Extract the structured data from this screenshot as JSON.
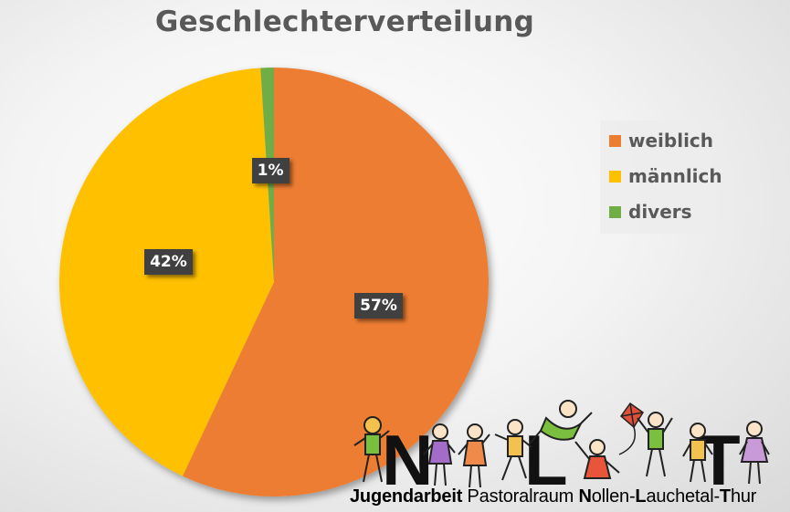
{
  "chart_data": {
    "type": "pie",
    "title": "Geschlechterverteilung",
    "categories": [
      "weiblich",
      "männlich",
      "divers"
    ],
    "values": [
      57,
      42,
      1
    ],
    "unit": "%",
    "data_labels": [
      "57%",
      "42%",
      "1%"
    ],
    "colors": [
      "#ED7D31",
      "#FFC000",
      "#70AD47"
    ],
    "legend_position": "right"
  },
  "logo": {
    "letters": [
      "N",
      "L",
      "T"
    ],
    "text_parts": [
      {
        "text": "Jugendarbeit",
        "bold": true
      },
      {
        "text": " Pastoralraum ",
        "bold": false
      },
      {
        "text": "N",
        "bold": true
      },
      {
        "text": "ollen-",
        "bold": false
      },
      {
        "text": "L",
        "bold": true
      },
      {
        "text": "auchetal-",
        "bold": false
      },
      {
        "text": "T",
        "bold": true
      },
      {
        "text": "hur",
        "bold": false
      }
    ]
  }
}
